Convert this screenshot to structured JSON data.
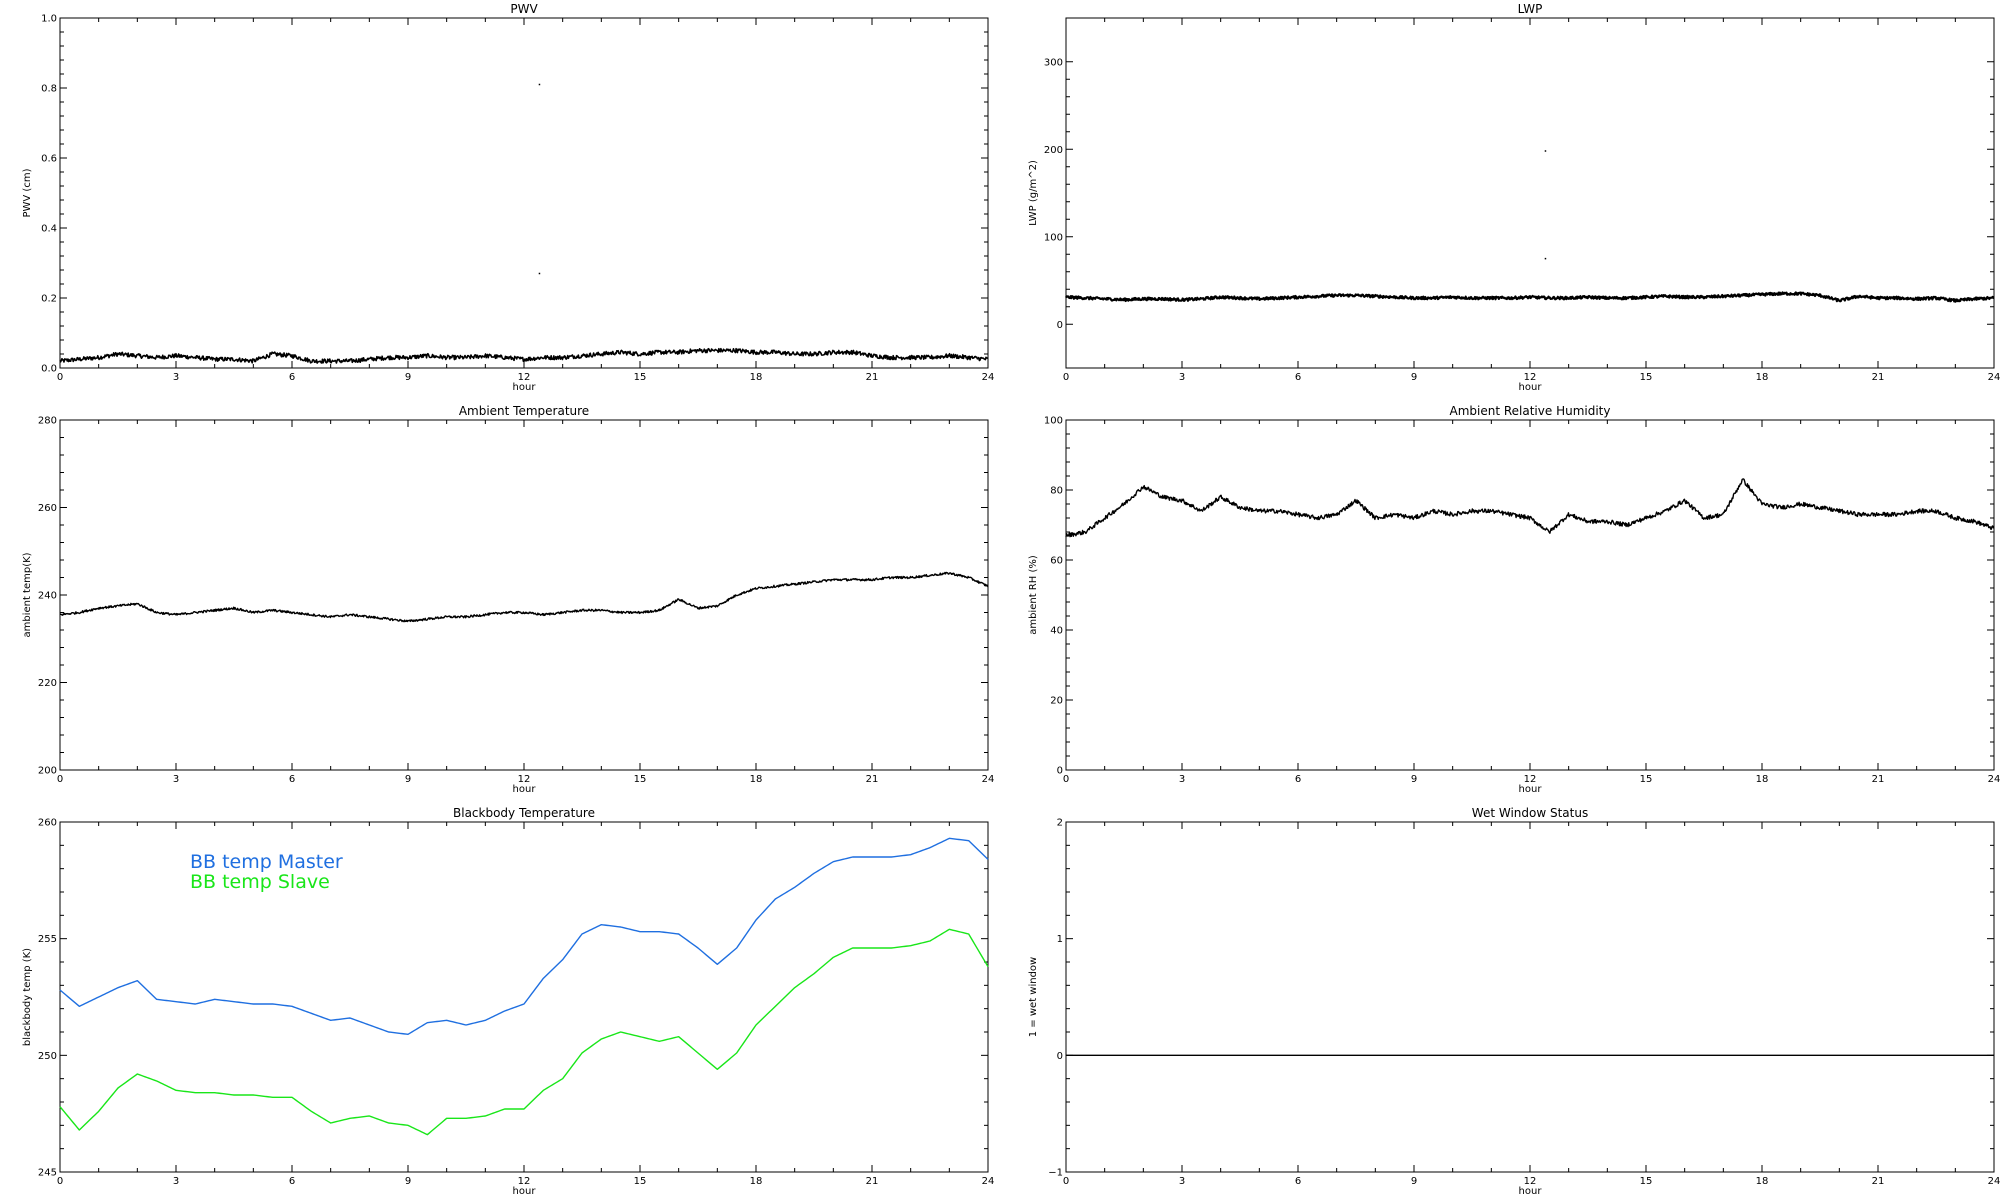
{
  "colors": {
    "master": "#1f6fe0",
    "slave": "#19e619",
    "line": "#000000"
  },
  "chart_data": [
    {
      "type": "line",
      "title": "PWV",
      "xlabel": "hour",
      "ylabel": "PWV (cm)",
      "xlim": [
        0,
        24
      ],
      "ylim": [
        0,
        1
      ],
      "xticks": [
        0,
        3,
        6,
        9,
        12,
        15,
        18,
        21,
        24
      ],
      "yticks": [
        "0.0",
        "0.2",
        "0.4",
        "0.6",
        "0.8",
        "1.0"
      ],
      "noise": 0.006,
      "outliers": [
        [
          12.4,
          0.81
        ],
        [
          12.4,
          0.27
        ]
      ],
      "series": [
        {
          "x": [
            0,
            0.5,
            1,
            1.5,
            2,
            2.5,
            3,
            3.5,
            4,
            4.5,
            5,
            5.5,
            6,
            6.5,
            7,
            7.5,
            8,
            8.5,
            9,
            9.5,
            10,
            10.5,
            11,
            11.5,
            12,
            12.5,
            13,
            13.5,
            14,
            14.5,
            15,
            15.5,
            16,
            16.5,
            17,
            17.5,
            18,
            18.5,
            19,
            19.5,
            20,
            20.5,
            21,
            21.5,
            22,
            22.5,
            23,
            23.5,
            24
          ],
          "y": [
            0.02,
            0.025,
            0.03,
            0.04,
            0.035,
            0.03,
            0.035,
            0.03,
            0.025,
            0.025,
            0.02,
            0.04,
            0.035,
            0.02,
            0.02,
            0.02,
            0.025,
            0.03,
            0.03,
            0.035,
            0.03,
            0.03,
            0.035,
            0.03,
            0.025,
            0.03,
            0.03,
            0.035,
            0.04,
            0.045,
            0.04,
            0.045,
            0.045,
            0.05,
            0.05,
            0.05,
            0.045,
            0.045,
            0.04,
            0.04,
            0.045,
            0.045,
            0.035,
            0.03,
            0.03,
            0.03,
            0.035,
            0.03,
            0.025
          ]
        }
      ]
    },
    {
      "type": "line",
      "title": "LWP",
      "xlabel": "hour",
      "ylabel": "LWP (g/m^2)",
      "xlim": [
        0,
        24
      ],
      "ylim": [
        -50,
        350
      ],
      "xticks": [
        0,
        3,
        6,
        9,
        12,
        15,
        18,
        21,
        24
      ],
      "yticks": [
        "0",
        "100",
        "200",
        "300"
      ],
      "noise": 1.5,
      "outliers": [
        [
          12.4,
          198
        ],
        [
          12.4,
          75
        ]
      ],
      "series": [
        {
          "x": [
            0,
            0.5,
            1,
            1.5,
            2,
            2.5,
            3,
            3.5,
            4,
            4.5,
            5,
            5.5,
            6,
            6.5,
            7,
            7.5,
            8,
            8.5,
            9,
            9.5,
            10,
            10.5,
            11,
            11.5,
            12,
            12.5,
            13,
            13.5,
            14,
            14.5,
            15,
            15.5,
            16,
            16.5,
            17,
            17.5,
            18,
            18.5,
            19,
            19.5,
            20,
            20.5,
            21,
            21.5,
            22,
            22.5,
            23,
            23.5,
            24
          ],
          "y": [
            31,
            30,
            29,
            28,
            29,
            29,
            28,
            29,
            31,
            30,
            29,
            30,
            31,
            32,
            33,
            33,
            32,
            31,
            30,
            30,
            31,
            30,
            30,
            30,
            31,
            30,
            30,
            31,
            30,
            30,
            31,
            32,
            31,
            31,
            32,
            33,
            34,
            35,
            35,
            33,
            27,
            32,
            30,
            30,
            29,
            30,
            27,
            29,
            30
          ]
        }
      ]
    },
    {
      "type": "line",
      "title": "Ambient Temperature",
      "xlabel": "hour",
      "ylabel": "ambient temp(K)",
      "xlim": [
        0,
        24
      ],
      "ylim": [
        200,
        280
      ],
      "xticks": [
        0,
        3,
        6,
        9,
        12,
        15,
        18,
        21,
        24
      ],
      "yticks": [
        "200",
        "220",
        "240",
        "260",
        "280"
      ],
      "noise": 0.25,
      "outliers": [],
      "series": [
        {
          "x": [
            0,
            0.5,
            1,
            1.5,
            2,
            2.5,
            3,
            3.5,
            4,
            4.5,
            5,
            5.5,
            6,
            6.5,
            7,
            7.5,
            8,
            8.5,
            9,
            9.5,
            10,
            10.5,
            11,
            11.5,
            12,
            12.5,
            13,
            13.5,
            14,
            14.5,
            15,
            15.5,
            16,
            16.5,
            17,
            17.5,
            18,
            18.5,
            19,
            19.5,
            20,
            20.5,
            21,
            21.5,
            22,
            22.5,
            23,
            23.5,
            24
          ],
          "y": [
            235.5,
            236,
            237,
            237.5,
            238,
            236,
            235.5,
            236,
            236.5,
            237,
            236,
            236.5,
            236,
            235.5,
            235,
            235.5,
            235,
            234.5,
            234,
            234.5,
            235,
            235,
            235.5,
            236,
            236,
            235.5,
            236,
            236.5,
            236.5,
            236,
            236,
            236.5,
            239,
            237,
            237.5,
            240,
            241.5,
            242,
            242.5,
            243,
            243.5,
            243.5,
            243.5,
            244,
            244,
            244.5,
            245,
            244,
            242
          ]
        }
      ]
    },
    {
      "type": "line",
      "title": "Ambient Relative Humidity",
      "xlabel": "hour",
      "ylabel": "ambient RH (%)",
      "xlim": [
        0,
        24
      ],
      "ylim": [
        0,
        100
      ],
      "xticks": [
        0,
        3,
        6,
        9,
        12,
        15,
        18,
        21,
        24
      ],
      "yticks": [
        "0",
        "20",
        "40",
        "60",
        "80",
        "100"
      ],
      "noise": 0.6,
      "outliers": [],
      "series": [
        {
          "x": [
            0,
            0.5,
            1,
            1.5,
            2,
            2.5,
            3,
            3.5,
            4,
            4.5,
            5,
            5.5,
            6,
            6.5,
            7,
            7.5,
            8,
            8.5,
            9,
            9.5,
            10,
            10.5,
            11,
            11.5,
            12,
            12.5,
            13,
            13.5,
            14,
            14.5,
            15,
            15.5,
            16,
            16.5,
            17,
            17.5,
            18,
            18.5,
            19,
            19.5,
            20,
            20.5,
            21,
            21.5,
            22,
            22.5,
            23,
            23.5,
            24
          ],
          "y": [
            67,
            68,
            72,
            76,
            81,
            78,
            77,
            74,
            78,
            75,
            74,
            74,
            73,
            72,
            73,
            77,
            72,
            73,
            72,
            74,
            73,
            74,
            74,
            73,
            72,
            68,
            73,
            71,
            71,
            70,
            72,
            74,
            77,
            72,
            73,
            83,
            76,
            75,
            76,
            75,
            74,
            73,
            73,
            73,
            74,
            74,
            72,
            71,
            69
          ]
        }
      ]
    },
    {
      "type": "line",
      "title": "Blackbody Temperature",
      "xlabel": "hour",
      "ylabel": "blackbody temp (K)",
      "xlim": [
        0,
        24
      ],
      "ylim": [
        245,
        260
      ],
      "xticks": [
        0,
        3,
        6,
        9,
        12,
        15,
        18,
        21,
        24
      ],
      "yticks": [
        "245",
        "250",
        "255",
        "260"
      ],
      "noise": 0,
      "outliers": [],
      "series": [
        {
          "name": "BB temp Master",
          "x": [
            0,
            0.5,
            1,
            1.5,
            2,
            2.5,
            3,
            3.5,
            4,
            4.5,
            5,
            5.5,
            6,
            6.5,
            7,
            7.5,
            8,
            8.5,
            9,
            9.5,
            10,
            10.5,
            11,
            11.5,
            12,
            12.5,
            13,
            13.5,
            14,
            14.5,
            15,
            15.5,
            16,
            16.5,
            17,
            17.5,
            18,
            18.5,
            19,
            19.5,
            20,
            20.5,
            21,
            21.5,
            22,
            22.5,
            23,
            23.5,
            24
          ],
          "y": [
            252.8,
            252.1,
            252.5,
            252.9,
            253.2,
            252.4,
            252.3,
            252.2,
            252.4,
            252.3,
            252.2,
            252.2,
            252.1,
            251.8,
            251.5,
            251.6,
            251.3,
            251.0,
            250.9,
            251.4,
            251.5,
            251.3,
            251.5,
            251.9,
            252.2,
            253.3,
            254.1,
            255.2,
            255.6,
            255.5,
            255.3,
            255.3,
            255.2,
            254.6,
            253.9,
            254.6,
            255.8,
            256.7,
            257.2,
            257.8,
            258.3,
            258.5,
            258.5,
            258.5,
            258.6,
            258.9,
            259.3,
            259.2,
            258.4
          ]
        },
        {
          "name": "BB temp Slave",
          "x": [
            0,
            0.5,
            1,
            1.5,
            2,
            2.5,
            3,
            3.5,
            4,
            4.5,
            5,
            5.5,
            6,
            6.5,
            7,
            7.5,
            8,
            8.5,
            9,
            9.5,
            10,
            10.5,
            11,
            11.5,
            12,
            12.5,
            13,
            13.5,
            14,
            14.5,
            15,
            15.5,
            16,
            16.5,
            17,
            17.5,
            18,
            18.5,
            19,
            19.5,
            20,
            20.5,
            21,
            21.5,
            22,
            22.5,
            23,
            23.5,
            24
          ],
          "y": [
            247.8,
            246.8,
            247.6,
            248.6,
            249.2,
            248.9,
            248.5,
            248.4,
            248.4,
            248.3,
            248.3,
            248.2,
            248.2,
            247.6,
            247.1,
            247.3,
            247.4,
            247.1,
            247.0,
            246.6,
            247.3,
            247.3,
            247.4,
            247.7,
            247.7,
            248.5,
            249.0,
            250.1,
            250.7,
            251.0,
            250.8,
            250.6,
            250.8,
            250.1,
            249.4,
            250.1,
            251.3,
            252.1,
            252.9,
            253.5,
            254.2,
            254.6,
            254.6,
            254.6,
            254.7,
            254.9,
            255.4,
            255.2,
            253.8
          ]
        }
      ]
    },
    {
      "type": "line",
      "title": "Wet Window Status",
      "xlabel": "hour",
      "ylabel": "1 = wet window",
      "xlim": [
        0,
        24
      ],
      "ylim": [
        -1,
        2
      ],
      "xticks": [
        0,
        3,
        6,
        9,
        12,
        15,
        18,
        21,
        24
      ],
      "yticks": [
        "−1",
        "0",
        "1",
        "2"
      ],
      "noise": 0,
      "outliers": [],
      "series": [
        {
          "x": [
            0,
            24
          ],
          "y": [
            0,
            0
          ]
        }
      ]
    }
  ]
}
